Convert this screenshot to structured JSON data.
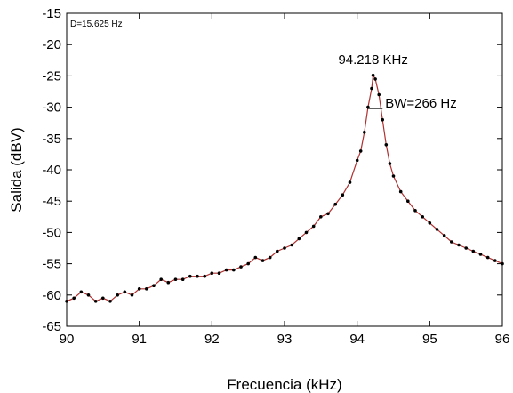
{
  "chart_data": {
    "type": "line",
    "title": "",
    "xlabel": "Frecuencia (kHz)",
    "ylabel": "Salida (dBV)",
    "xlim": [
      90,
      96
    ],
    "ylim": [
      -65,
      -15
    ],
    "xticks": [
      90,
      91,
      92,
      93,
      94,
      95,
      96
    ],
    "xtick_labels": [
      "90",
      "91",
      "92",
      "93",
      "94",
      "95",
      "96"
    ],
    "yticks": [
      -65,
      -60,
      -55,
      -50,
      -45,
      -40,
      -35,
      -30,
      -25,
      -20,
      -15
    ],
    "ytick_labels": [
      "-65",
      "-60",
      "-55",
      "-50",
      "-45",
      "-40",
      "-35",
      "-30",
      "-25",
      "-20",
      "-15"
    ],
    "grid": false,
    "legend": "none",
    "series": [
      {
        "line_color": "#b03030",
        "marker_color": "#000000",
        "x": [
          90.0,
          90.1,
          90.2,
          90.3,
          90.4,
          90.5,
          90.6,
          90.7,
          90.8,
          90.9,
          91.0,
          91.1,
          91.2,
          91.3,
          91.4,
          91.5,
          91.6,
          91.7,
          91.8,
          91.9,
          92.0,
          92.1,
          92.2,
          92.3,
          92.4,
          92.5,
          92.6,
          92.7,
          92.8,
          92.9,
          93.0,
          93.1,
          93.2,
          93.3,
          93.4,
          93.5,
          93.6,
          93.7,
          93.8,
          93.9,
          94.0,
          94.05,
          94.1,
          94.15,
          94.2,
          94.22,
          94.25,
          94.3,
          94.35,
          94.4,
          94.45,
          94.5,
          94.6,
          94.7,
          94.8,
          94.9,
          95.0,
          95.1,
          95.2,
          95.3,
          95.4,
          95.5,
          95.6,
          95.7,
          95.8,
          95.9,
          96.0
        ],
        "values": [
          -61.0,
          -60.5,
          -59.5,
          -60.0,
          -61.0,
          -60.5,
          -61.0,
          -60.0,
          -59.5,
          -60.0,
          -59.0,
          -59.0,
          -58.5,
          -57.5,
          -58.0,
          -57.5,
          -57.5,
          -57.0,
          -57.0,
          -57.0,
          -56.5,
          -56.5,
          -56.0,
          -56.0,
          -55.5,
          -55.0,
          -54.0,
          -54.5,
          -54.0,
          -53.0,
          -52.5,
          -52.0,
          -51.0,
          -50.0,
          -49.0,
          -47.5,
          -47.0,
          -45.5,
          -44.0,
          -42.0,
          -38.5,
          -37.0,
          -34.0,
          -30.0,
          -27.0,
          -24.9,
          -25.5,
          -28.0,
          -32.0,
          -36.0,
          -39.0,
          -41.0,
          -43.5,
          -45.0,
          -46.5,
          -47.5,
          -48.5,
          -49.5,
          -50.5,
          -51.5,
          -52.0,
          -52.5,
          -53.0,
          -53.5,
          -54.0,
          -54.5,
          -55.0
        ]
      }
    ],
    "annotations": {
      "peak_label": "94.218 KHz",
      "bandwidth_label": "BW=266 Hz",
      "resolution_note": "D=15.625 Hz",
      "bandwidth_level": -30.2,
      "bandwidth_x": [
        94.14,
        94.35
      ]
    }
  }
}
